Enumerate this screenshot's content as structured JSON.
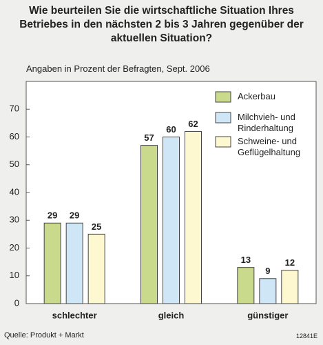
{
  "chart_data": {
    "type": "bar",
    "title": "Wie beurteilen Sie die wirtschaftliche Situation Ihres Betriebes in den nächsten 2 bis 3 Jahren gegenüber der aktuellen Situation?",
    "subtitle": "Angaben in Prozent der Befragten, Sept. 2006",
    "categories": [
      "schlechter",
      "gleich",
      "günstiger"
    ],
    "series": [
      {
        "name": "Ackerbau",
        "color": "#c9da8c",
        "values": [
          29,
          57,
          13
        ]
      },
      {
        "name": "Milchvieh- und Rinderhaltung",
        "color": "#cfe6f6",
        "values": [
          29,
          60,
          9
        ]
      },
      {
        "name": "Schweine- und Geflügelhaltung",
        "color": "#fdf8cf",
        "values": [
          25,
          62,
          12
        ]
      }
    ],
    "ylim": [
      0,
      80
    ],
    "yticks": [
      0,
      10,
      20,
      30,
      40,
      50,
      60,
      70
    ],
    "legend": "top-right",
    "source": "Quelle: Produkt + Markt",
    "code": "12841E"
  }
}
